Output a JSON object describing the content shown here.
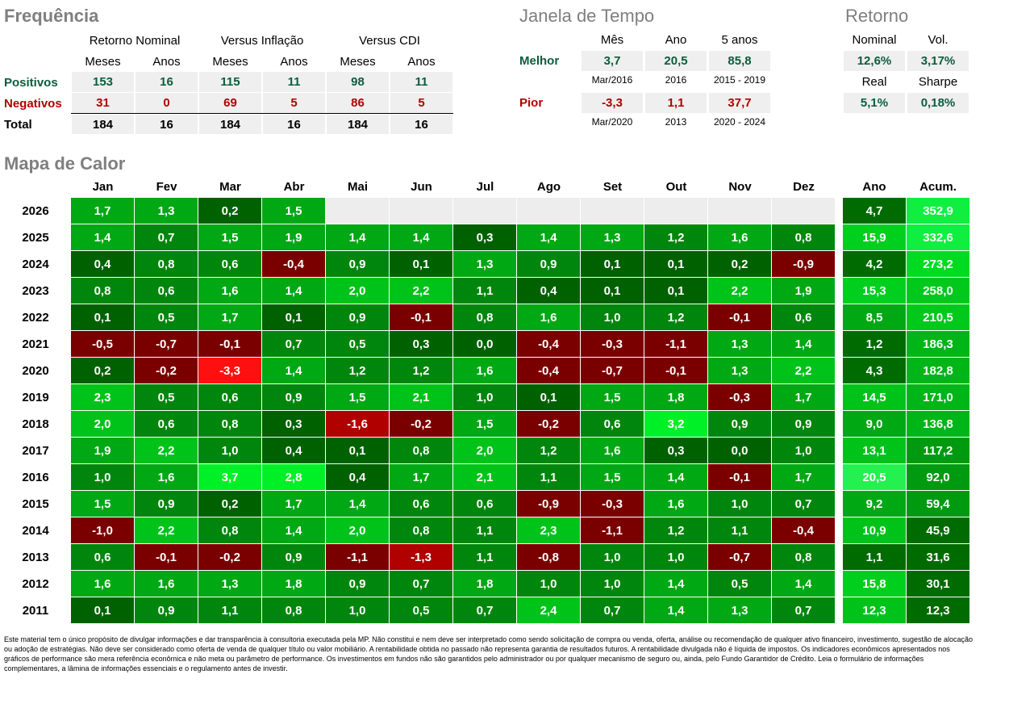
{
  "frequencia": {
    "title": "Frequência",
    "groups": [
      "Retorno Nominal",
      "Versus Inflação",
      "Versus CDI"
    ],
    "subheaders": [
      "Meses",
      "Anos",
      "Meses",
      "Anos",
      "Meses",
      "Anos"
    ],
    "rows": [
      {
        "label": "Positivos",
        "values": [
          "153",
          "16",
          "115",
          "11",
          "98",
          "11"
        ]
      },
      {
        "label": "Negativos",
        "values": [
          "31",
          "0",
          "69",
          "5",
          "86",
          "5"
        ]
      },
      {
        "label": "Total",
        "values": [
          "184",
          "16",
          "184",
          "16",
          "184",
          "16"
        ]
      }
    ]
  },
  "janela": {
    "title": "Janela de Tempo",
    "headers": [
      "Mês",
      "Ano",
      "5 anos"
    ],
    "melhor": {
      "label": "Melhor",
      "values": [
        "3,7",
        "20,5",
        "85,8"
      ],
      "periods": [
        "Mar/2016",
        "2016",
        "2015 - 2019"
      ]
    },
    "pior": {
      "label": "Pior",
      "values": [
        "-3,3",
        "1,1",
        "37,7"
      ],
      "periods": [
        "Mar/2020",
        "2013",
        "2020 - 2024"
      ]
    }
  },
  "retorno": {
    "title": "Retorno",
    "labels1": [
      "Nominal",
      "Vol."
    ],
    "values1": [
      "12,6%",
      "3,17%"
    ],
    "labels2": [
      "Real",
      "Sharpe"
    ],
    "values2": [
      "5,1%",
      "0,18%"
    ]
  },
  "mapa": {
    "title": "Mapa de Calor",
    "months": [
      "Jan",
      "Fev",
      "Mar",
      "Abr",
      "Mai",
      "Jun",
      "Jul",
      "Ago",
      "Set",
      "Out",
      "Nov",
      "Dez"
    ],
    "ano_label": "Ano",
    "acum_label": "Acum.",
    "rows": [
      {
        "year": "2026",
        "values": [
          "1,7",
          "1,3",
          "0,2",
          "1,5",
          "",
          "",
          "",
          "",
          "",
          "",
          "",
          ""
        ],
        "ano": "4,7",
        "acum": "352,9"
      },
      {
        "year": "2025",
        "values": [
          "1,4",
          "0,7",
          "1,5",
          "1,9",
          "1,4",
          "1,4",
          "0,3",
          "1,4",
          "1,3",
          "1,2",
          "1,6",
          "0,8"
        ],
        "ano": "15,9",
        "acum": "332,6"
      },
      {
        "year": "2024",
        "values": [
          "0,4",
          "0,8",
          "0,6",
          "-0,4",
          "0,9",
          "0,1",
          "1,3",
          "0,9",
          "0,1",
          "0,1",
          "0,2",
          "-0,9"
        ],
        "ano": "4,2",
        "acum": "273,2"
      },
      {
        "year": "2023",
        "values": [
          "0,8",
          "0,6",
          "1,6",
          "1,4",
          "2,0",
          "2,2",
          "1,1",
          "0,4",
          "0,1",
          "0,1",
          "2,2",
          "1,9"
        ],
        "ano": "15,3",
        "acum": "258,0"
      },
      {
        "year": "2022",
        "values": [
          "0,1",
          "0,5",
          "1,7",
          "0,1",
          "0,9",
          "-0,1",
          "0,8",
          "1,6",
          "1,0",
          "1,2",
          "-0,1",
          "0,6"
        ],
        "ano": "8,5",
        "acum": "210,5"
      },
      {
        "year": "2021",
        "values": [
          "-0,5",
          "-0,7",
          "-0,1",
          "0,7",
          "0,5",
          "0,3",
          "0,0",
          "-0,4",
          "-0,3",
          "-1,1",
          "1,3",
          "1,4"
        ],
        "ano": "1,2",
        "acum": "186,3"
      },
      {
        "year": "2020",
        "values": [
          "0,2",
          "-0,2",
          "-3,3",
          "1,4",
          "1,2",
          "1,2",
          "1,6",
          "-0,4",
          "-0,7",
          "-0,1",
          "1,3",
          "2,2"
        ],
        "ano": "4,3",
        "acum": "182,8"
      },
      {
        "year": "2019",
        "values": [
          "2,3",
          "0,5",
          "0,6",
          "0,9",
          "1,5",
          "2,1",
          "1,0",
          "0,1",
          "1,5",
          "1,8",
          "-0,3",
          "1,7"
        ],
        "ano": "14,5",
        "acum": "171,0"
      },
      {
        "year": "2018",
        "values": [
          "2,0",
          "0,6",
          "0,8",
          "0,3",
          "-1,6",
          "-0,2",
          "1,5",
          "-0,2",
          "0,6",
          "3,2",
          "0,9",
          "0,9"
        ],
        "ano": "9,0",
        "acum": "136,8"
      },
      {
        "year": "2017",
        "values": [
          "1,9",
          "2,2",
          "1,0",
          "0,4",
          "0,1",
          "0,8",
          "2,0",
          "1,2",
          "1,6",
          "0,3",
          "0,0",
          "1,0"
        ],
        "ano": "13,1",
        "acum": "117,2"
      },
      {
        "year": "2016",
        "values": [
          "1,0",
          "1,6",
          "3,7",
          "2,8",
          "0,4",
          "1,7",
          "2,1",
          "1,1",
          "1,5",
          "1,4",
          "-0,1",
          "1,7"
        ],
        "ano": "20,5",
        "acum": "92,0"
      },
      {
        "year": "2015",
        "values": [
          "1,5",
          "0,9",
          "0,2",
          "1,7",
          "1,4",
          "0,6",
          "0,6",
          "-0,9",
          "-0,3",
          "1,6",
          "1,0",
          "0,7"
        ],
        "ano": "9,2",
        "acum": "59,4"
      },
      {
        "year": "2014",
        "values": [
          "-1,0",
          "2,2",
          "0,8",
          "1,4",
          "2,0",
          "0,8",
          "1,1",
          "2,3",
          "-1,1",
          "1,2",
          "1,1",
          "-0,4"
        ],
        "ano": "10,9",
        "acum": "45,9"
      },
      {
        "year": "2013",
        "values": [
          "0,6",
          "-0,1",
          "-0,2",
          "0,9",
          "-1,1",
          "-1,3",
          "1,1",
          "-0,8",
          "1,0",
          "1,0",
          "-0,7",
          "0,8"
        ],
        "ano": "1,1",
        "acum": "31,6"
      },
      {
        "year": "2012",
        "values": [
          "1,6",
          "1,6",
          "1,3",
          "1,8",
          "0,9",
          "0,7",
          "1,8",
          "1,0",
          "1,0",
          "1,4",
          "0,5",
          "1,4"
        ],
        "ano": "15,8",
        "acum": "30,1"
      },
      {
        "year": "2011",
        "values": [
          "0,1",
          "0,9",
          "1,1",
          "0,8",
          "1,0",
          "0,5",
          "0,7",
          "2,4",
          "0,7",
          "1,4",
          "1,3",
          "0,7"
        ],
        "ano": "12,3",
        "acum": "12,3"
      }
    ]
  },
  "disclaimer": "Este material tem o único propósito de divulgar informações e dar transparência à consultoria executada pela MP. Não constitui e nem deve ser interpretado como sendo solicitação de compra ou venda, oferta, análise ou recomendação de qualquer ativo financeiro, investimento, sugestão de alocação ou adoção de estratégias. Não deve ser considerado como oferta de venda de qualquer título ou valor mobiliário. A rentabilidade obtida no passado não representa garantia de resultados futuros. A rentabilidade divulgada não é líquida de impostos. Os indicadores econômicos apresentados nos gráficos de performance são mera referência econômica e não meta ou parâmetro de performance. Os investimentos em fundos não são garantidos pelo administrador ou por qualquer mecanismo de seguro ou, ainda, pelo Fundo Garantidor de Crédito. Leia o formulário de informações complementares, a lâmina de informações essenciais e o regulamento antes de investir."
}
